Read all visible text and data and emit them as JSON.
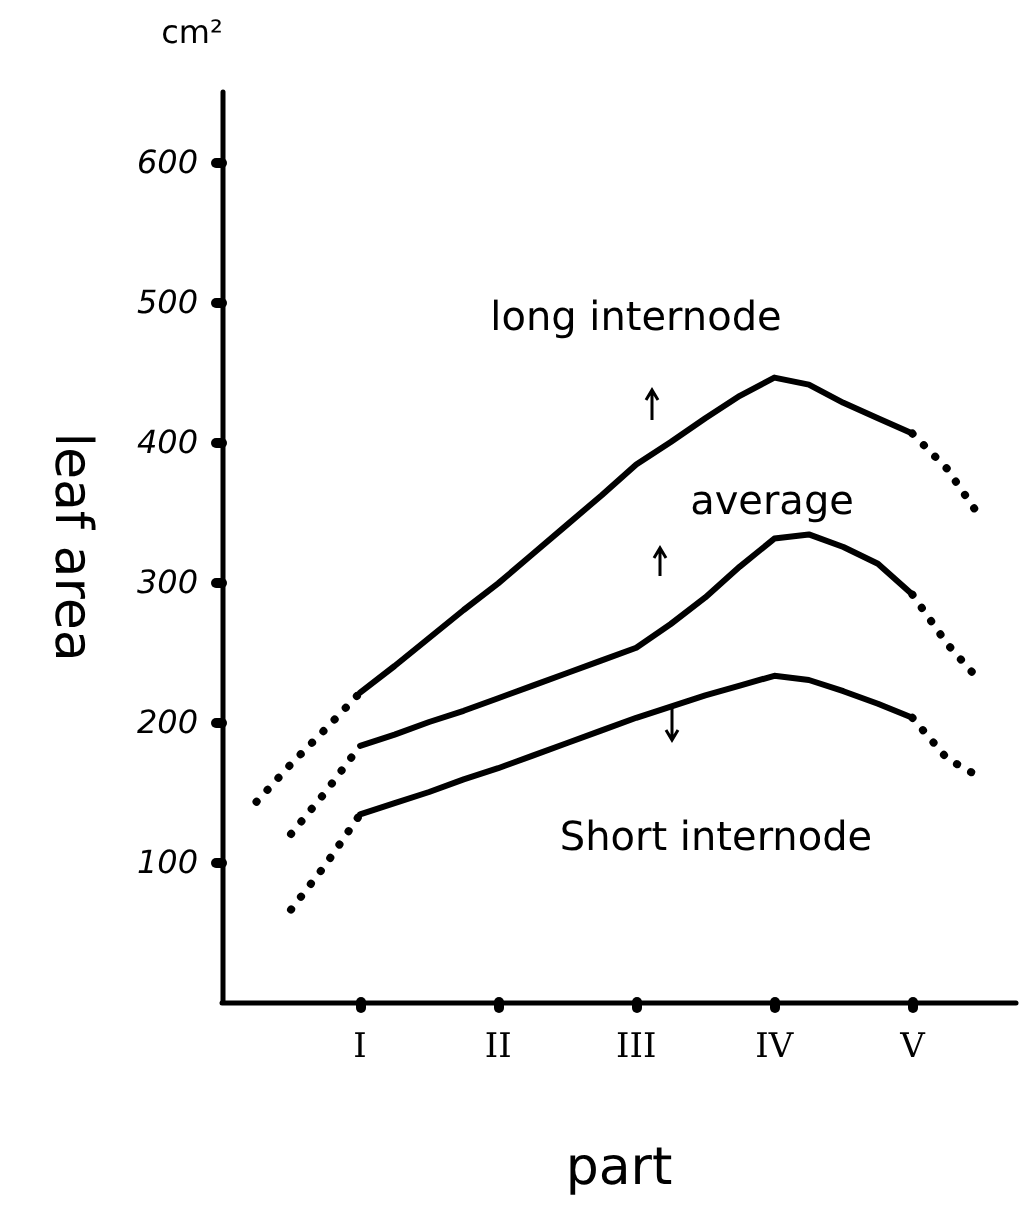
{
  "chart_data": {
    "type": "line",
    "xlabel": "part",
    "ylabel": "leaf area",
    "categories": [
      null,
      null,
      null,
      null,
      "I",
      null,
      null,
      null,
      "II",
      null,
      null,
      null,
      "III",
      null,
      null,
      null,
      "IV",
      null,
      null,
      null,
      "V",
      null,
      null,
      null
    ],
    "ylim": [
      0,
      650
    ],
    "yticks": [
      100,
      200,
      300,
      400,
      500,
      600
    ],
    "grid": false,
    "marker": "none",
    "series": [
      {
        "color": "#000000",
        "line_style": "solid",
        "values": [
          null,
          null,
          null,
          null,
          221,
          240,
          260,
          280,
          299,
          320,
          341,
          362,
          384,
          400,
          417,
          433,
          446,
          441,
          428,
          417,
          406,
          null,
          null,
          null
        ]
      },
      {
        "color": "#000000",
        "line_style": "dotted",
        "values": [
          null,
          143,
          170,
          195,
          221,
          null,
          null,
          null,
          null,
          null,
          null,
          null,
          null,
          null,
          null,
          null,
          null,
          null,
          null,
          null,
          null,
          null,
          null,
          null
        ]
      },
      {
        "color": "#000000",
        "line_style": "dotted",
        "values": [
          null,
          null,
          null,
          null,
          null,
          null,
          null,
          null,
          null,
          null,
          null,
          null,
          null,
          null,
          null,
          null,
          null,
          null,
          null,
          null,
          406,
          381,
          345,
          null
        ]
      },
      {
        "color": "#000000",
        "line_style": "solid",
        "values": [
          null,
          null,
          null,
          null,
          183,
          191,
          200,
          208,
          217,
          226,
          235,
          244,
          253,
          270,
          289,
          311,
          331,
          334,
          325,
          313,
          291,
          null,
          null,
          null
        ]
      },
      {
        "color": "#000000",
        "line_style": "dotted",
        "values": [
          null,
          null,
          120,
          150,
          183,
          null,
          null,
          null,
          null,
          null,
          null,
          null,
          null,
          null,
          null,
          null,
          null,
          null,
          null,
          null,
          null,
          null,
          null,
          null
        ]
      },
      {
        "color": "#000000",
        "line_style": "dotted",
        "values": [
          null,
          null,
          null,
          null,
          null,
          null,
          null,
          null,
          null,
          null,
          null,
          null,
          null,
          null,
          null,
          null,
          null,
          null,
          null,
          null,
          291,
          256,
          228,
          null
        ]
      },
      {
        "color": "#000000",
        "line_style": "solid",
        "values": [
          null,
          null,
          null,
          null,
          134,
          142,
          150,
          159,
          167,
          176,
          185,
          194,
          203,
          211,
          219,
          226,
          233,
          230,
          222,
          213,
          203,
          null,
          null,
          null
        ]
      },
      {
        "color": "#000000",
        "line_style": "dotted",
        "values": [
          null,
          null,
          66,
          98,
          134,
          null,
          null,
          null,
          null,
          null,
          null,
          null,
          null,
          null,
          null,
          null,
          null,
          null,
          null,
          null,
          null,
          null,
          null,
          null
        ]
      },
      {
        "color": "#000000",
        "line_style": "dotted",
        "values": [
          null,
          null,
          null,
          null,
          null,
          null,
          null,
          null,
          null,
          null,
          null,
          null,
          null,
          null,
          null,
          null,
          null,
          null,
          null,
          null,
          203,
          174,
          160,
          null
        ]
      }
    ],
    "annotations": [
      "long internode",
      "average",
      "Short internode",
      "cm²"
    ]
  }
}
